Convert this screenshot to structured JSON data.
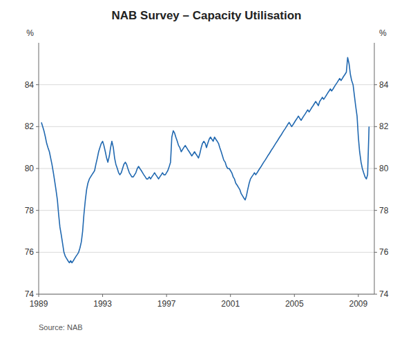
{
  "chart_data": {
    "type": "line",
    "title": "NAB Survey – Capacity Utilisation",
    "source": "Source: NAB",
    "y_label": "%",
    "y2_label": "%",
    "ylim": [
      74,
      86
    ],
    "yticks": [
      74,
      76,
      78,
      80,
      82,
      84
    ],
    "y2lim": [
      74,
      86
    ],
    "y2ticks": [
      74,
      76,
      78,
      80,
      82,
      84
    ],
    "xlim": [
      1989.0,
      2010.0
    ],
    "xticks": [
      1989,
      1993,
      1997,
      2001,
      2005,
      2009
    ],
    "grid": true,
    "color": "#2068b0",
    "x": [
      1989.17,
      1989.25,
      1989.33,
      1989.42,
      1989.5,
      1989.58,
      1989.67,
      1989.75,
      1989.83,
      1989.92,
      1990.0,
      1990.08,
      1990.17,
      1990.25,
      1990.33,
      1990.42,
      1990.5,
      1990.58,
      1990.67,
      1990.75,
      1990.83,
      1990.92,
      1991.0,
      1991.08,
      1991.17,
      1991.25,
      1991.33,
      1991.42,
      1991.5,
      1991.58,
      1991.67,
      1991.75,
      1991.83,
      1991.92,
      1992.0,
      1992.08,
      1992.17,
      1992.25,
      1992.33,
      1992.42,
      1992.5,
      1992.58,
      1992.67,
      1992.75,
      1992.83,
      1992.92,
      1993.0,
      1993.08,
      1993.17,
      1993.25,
      1993.33,
      1993.42,
      1993.5,
      1993.58,
      1993.67,
      1993.75,
      1993.83,
      1993.92,
      1994.0,
      1994.08,
      1994.17,
      1994.25,
      1994.33,
      1994.42,
      1994.5,
      1994.58,
      1994.67,
      1994.75,
      1994.83,
      1994.92,
      1995.0,
      1995.08,
      1995.17,
      1995.25,
      1995.33,
      1995.42,
      1995.5,
      1995.58,
      1995.67,
      1995.75,
      1995.83,
      1995.92,
      1996.0,
      1996.08,
      1996.17,
      1996.25,
      1996.33,
      1996.42,
      1996.5,
      1996.58,
      1996.67,
      1996.75,
      1996.83,
      1996.92,
      1997.0,
      1997.08,
      1997.17,
      1997.25,
      1997.33,
      1997.42,
      1997.5,
      1997.58,
      1997.67,
      1997.75,
      1997.83,
      1997.92,
      1998.0,
      1998.08,
      1998.17,
      1998.25,
      1998.33,
      1998.42,
      1998.5,
      1998.58,
      1998.67,
      1998.75,
      1998.83,
      1998.92,
      1999.0,
      1999.08,
      1999.17,
      1999.25,
      1999.33,
      1999.42,
      1999.5,
      1999.58,
      1999.67,
      1999.75,
      1999.83,
      1999.92,
      2000.0,
      2000.08,
      2000.17,
      2000.25,
      2000.33,
      2000.42,
      2000.5,
      2000.58,
      2000.67,
      2000.75,
      2000.83,
      2000.92,
      2001.0,
      2001.08,
      2001.17,
      2001.25,
      2001.33,
      2001.42,
      2001.5,
      2001.58,
      2001.67,
      2001.75,
      2001.83,
      2001.92,
      2002.0,
      2002.08,
      2002.17,
      2002.25,
      2002.33,
      2002.42,
      2002.5,
      2002.58,
      2002.67,
      2002.75,
      2002.83,
      2002.92,
      2003.0,
      2003.08,
      2003.17,
      2003.25,
      2003.33,
      2003.42,
      2003.5,
      2003.58,
      2003.67,
      2003.75,
      2003.83,
      2003.92,
      2004.0,
      2004.08,
      2004.17,
      2004.25,
      2004.33,
      2004.42,
      2004.5,
      2004.58,
      2004.67,
      2004.75,
      2004.83,
      2004.92,
      2005.0,
      2005.08,
      2005.17,
      2005.25,
      2005.33,
      2005.42,
      2005.5,
      2005.58,
      2005.67,
      2005.75,
      2005.83,
      2005.92,
      2006.0,
      2006.08,
      2006.17,
      2006.25,
      2006.33,
      2006.42,
      2006.5,
      2006.58,
      2006.67,
      2006.75,
      2006.83,
      2006.92,
      2007.0,
      2007.08,
      2007.17,
      2007.25,
      2007.33,
      2007.42,
      2007.5,
      2007.58,
      2007.67,
      2007.75,
      2007.83,
      2007.92,
      2008.0,
      2008.08,
      2008.17,
      2008.25,
      2008.33,
      2008.42,
      2008.5,
      2008.58,
      2008.67,
      2008.75,
      2008.83,
      2008.92,
      2009.0,
      2009.08,
      2009.17,
      2009.25,
      2009.33,
      2009.42,
      2009.5,
      2009.58,
      2009.67
    ],
    "values": [
      82.2,
      82.0,
      81.8,
      81.5,
      81.2,
      81.0,
      80.8,
      80.5,
      80.2,
      79.8,
      79.4,
      79.0,
      78.5,
      77.8,
      77.2,
      76.8,
      76.4,
      76.0,
      75.8,
      75.7,
      75.6,
      75.5,
      75.6,
      75.5,
      75.6,
      75.7,
      75.8,
      75.9,
      76.0,
      76.2,
      76.5,
      77.0,
      77.8,
      78.5,
      79.0,
      79.3,
      79.5,
      79.6,
      79.7,
      79.8,
      79.9,
      80.2,
      80.5,
      80.8,
      81.0,
      81.2,
      81.3,
      81.1,
      80.8,
      80.5,
      80.3,
      80.6,
      81.0,
      81.3,
      81.0,
      80.5,
      80.2,
      80.0,
      79.8,
      79.7,
      79.8,
      80.0,
      80.2,
      80.3,
      80.2,
      80.0,
      79.8,
      79.7,
      79.6,
      79.6,
      79.7,
      79.8,
      80.0,
      80.1,
      80.0,
      79.9,
      79.8,
      79.7,
      79.6,
      79.5,
      79.5,
      79.6,
      79.5,
      79.6,
      79.7,
      79.8,
      79.7,
      79.6,
      79.5,
      79.6,
      79.7,
      79.8,
      79.7,
      79.7,
      79.8,
      79.9,
      80.1,
      80.3,
      81.5,
      81.8,
      81.7,
      81.5,
      81.3,
      81.1,
      81.0,
      80.8,
      80.9,
      81.0,
      81.1,
      81.0,
      80.9,
      80.8,
      80.7,
      80.6,
      80.7,
      80.8,
      80.7,
      80.6,
      80.5,
      80.7,
      81.0,
      81.2,
      81.3,
      81.2,
      81.0,
      81.2,
      81.4,
      81.5,
      81.4,
      81.3,
      81.5,
      81.4,
      81.3,
      81.2,
      81.0,
      80.8,
      80.6,
      80.4,
      80.3,
      80.1,
      80.0,
      80.0,
      79.9,
      79.8,
      79.6,
      79.5,
      79.3,
      79.2,
      79.1,
      79.0,
      78.8,
      78.7,
      78.6,
      78.5,
      78.7,
      79.0,
      79.3,
      79.5,
      79.6,
      79.7,
      79.8,
      79.7,
      79.8,
      79.9,
      80.0,
      80.1,
      80.2,
      80.3,
      80.4,
      80.5,
      80.6,
      80.7,
      80.8,
      80.9,
      81.0,
      81.1,
      81.2,
      81.3,
      81.4,
      81.5,
      81.6,
      81.7,
      81.8,
      81.9,
      82.0,
      82.1,
      82.2,
      82.1,
      82.0,
      82.1,
      82.2,
      82.3,
      82.4,
      82.5,
      82.4,
      82.3,
      82.4,
      82.5,
      82.6,
      82.7,
      82.8,
      82.7,
      82.8,
      82.9,
      83.0,
      83.1,
      83.2,
      83.1,
      83.0,
      83.2,
      83.3,
      83.4,
      83.3,
      83.4,
      83.5,
      83.6,
      83.7,
      83.8,
      83.7,
      83.8,
      83.9,
      84.0,
      84.1,
      84.2,
      84.3,
      84.2,
      84.3,
      84.4,
      84.5,
      84.6,
      85.3,
      85.0,
      84.5,
      84.2,
      84.0,
      83.5,
      83.0,
      82.5,
      81.5,
      80.8,
      80.3,
      80.0,
      79.8,
      79.6,
      79.5,
      79.7,
      82.0
    ]
  }
}
